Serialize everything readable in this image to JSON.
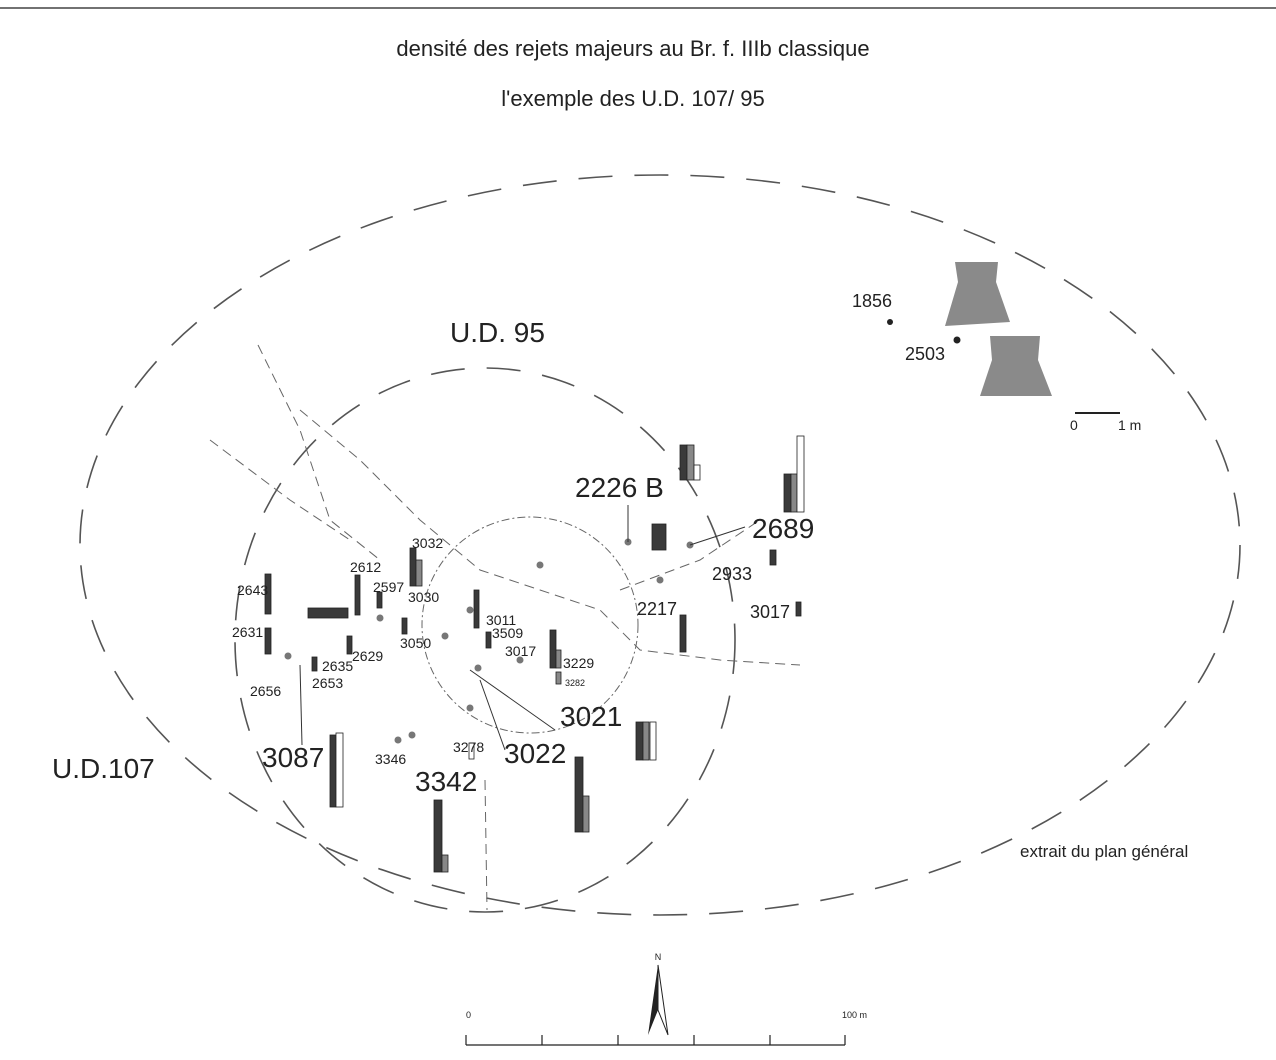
{
  "header": {
    "title": "densité des rejets majeurs  au Br. f. IIIb classique",
    "subtitle": "l'exemple des U.D. 107/ 95"
  },
  "zones": [
    "U.D. 95",
    "U.D.107"
  ],
  "features": [
    "2226 B",
    "2689",
    "3021",
    "3022",
    "3087",
    "3342",
    "1856",
    "2503",
    "2933",
    "2217",
    "3017",
    "3032",
    "2612",
    "2597",
    "2643",
    "3030",
    "3011",
    "2631",
    "3509",
    "3050",
    "3017",
    "2629",
    "3229",
    "2635",
    "2653",
    "2656",
    "3278",
    "3346",
    "3282"
  ],
  "scales": {
    "local": [
      "0",
      "1 m"
    ],
    "general": [
      "0",
      "100 m"
    ]
  },
  "north": "N",
  "note": "extrait du plan général"
}
